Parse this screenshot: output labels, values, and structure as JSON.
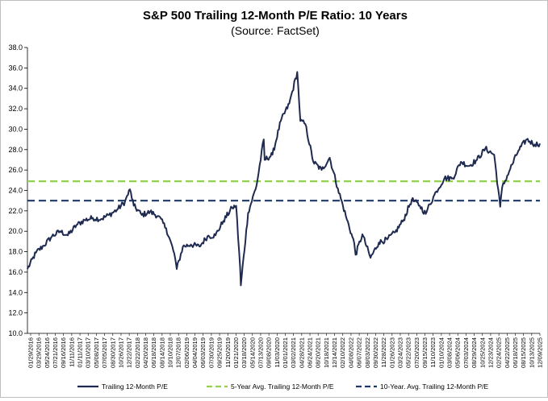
{
  "chart_data": {
    "type": "line",
    "title": "S&P 500 Trailing 12-Month P/E Ratio: 10 Years",
    "subtitle": "(Source: FactSet)",
    "xlabel": "",
    "ylabel": "",
    "ylim": [
      10,
      38
    ],
    "yticks": [
      "10.0",
      "12.0",
      "14.0",
      "16.0",
      "18.0",
      "20.0",
      "22.0",
      "24.0",
      "26.0",
      "28.0",
      "30.0",
      "32.0",
      "34.0",
      "36.0",
      "38.0"
    ],
    "x_tick_labels": [
      "01/29/2016",
      "03/29/2016",
      "05/24/2016",
      "07/21/2016",
      "09/16/2016",
      "11/11/2016",
      "01/11/2017",
      "03/10/2017",
      "05/08/2017",
      "07/05/2017",
      "08/30/2017",
      "10/26/2017",
      "12/22/2017",
      "02/22/2018",
      "04/20/2018",
      "06/18/2018",
      "08/14/2018",
      "10/10/2018",
      "12/07/2018",
      "02/06/2019",
      "04/04/2019",
      "06/03/2019",
      "07/30/2019",
      "09/25/2019",
      "11/20/2019",
      "01/21/2020",
      "03/18/2020",
      "05/14/2020",
      "07/13/2020",
      "09/08/2020",
      "11/03/2020",
      "01/01/2021",
      "03/02/2021",
      "04/28/2021",
      "06/24/2021",
      "08/20/2021",
      "10/18/2021",
      "12/14/2021",
      "02/10/2022",
      "04/08/2022",
      "06/07/2022",
      "08/03/2022",
      "09/30/2022",
      "11/28/2022",
      "01/26/2023",
      "03/24/2023",
      "05/22/2023",
      "07/20/2023",
      "09/15/2023",
      "11/10/2023",
      "01/10/2024",
      "03/08/2024",
      "05/06/2024",
      "07/03/2024",
      "08/29/2024",
      "10/25/2024",
      "12/23/2024",
      "02/24/2025",
      "04/22/2025",
      "06/18/2025",
      "08/15/2025",
      "10/13/2025",
      "12/09/2025"
    ],
    "grid": false,
    "legend_position": "bottom",
    "series": [
      {
        "name": "Trailing 12-Month P/E",
        "style": "solid",
        "color": "#1f2a50",
        "points": [
          [
            "01/29/2016",
            16.3
          ],
          [
            "03/29/2016",
            17.9
          ],
          [
            "05/24/2016",
            18.6
          ],
          [
            "07/21/2016",
            19.5
          ],
          [
            "09/16/2016",
            20.0
          ],
          [
            "11/11/2016",
            19.6
          ],
          [
            "01/11/2017",
            20.6
          ],
          [
            "03/10/2017",
            21.1
          ],
          [
            "05/08/2017",
            21.3
          ],
          [
            "07/05/2017",
            21.2
          ],
          [
            "08/30/2017",
            21.6
          ],
          [
            "10/26/2017",
            22.1
          ],
          [
            "12/22/2017",
            22.9
          ],
          [
            "01/26/2018",
            24.1
          ],
          [
            "02/22/2018",
            22.5
          ],
          [
            "04/20/2018",
            21.6
          ],
          [
            "06/18/2018",
            21.9
          ],
          [
            "08/14/2018",
            21.5
          ],
          [
            "10/10/2018",
            20.3
          ],
          [
            "12/07/2018",
            17.8
          ],
          [
            "12/24/2018",
            16.3
          ],
          [
            "02/06/2019",
            18.5
          ],
          [
            "04/04/2019",
            18.7
          ],
          [
            "06/03/2019",
            18.5
          ],
          [
            "07/30/2019",
            19.5
          ],
          [
            "09/25/2019",
            19.6
          ],
          [
            "11/20/2019",
            21.0
          ],
          [
            "01/21/2020",
            22.3
          ],
          [
            "02/19/2020",
            22.5
          ],
          [
            "03/18/2020",
            16.5
          ],
          [
            "03/23/2020",
            14.7
          ],
          [
            "05/14/2020",
            21.8
          ],
          [
            "07/13/2020",
            24.5
          ],
          [
            "09/02/2020",
            29.0
          ],
          [
            "09/08/2020",
            27.0
          ],
          [
            "11/03/2020",
            27.5
          ],
          [
            "01/01/2021",
            30.8
          ],
          [
            "03/02/2021",
            32.5
          ],
          [
            "04/28/2021",
            35.6
          ],
          [
            "05/20/2021",
            30.8
          ],
          [
            "06/24/2021",
            30.5
          ],
          [
            "08/20/2021",
            26.8
          ],
          [
            "10/18/2021",
            26.0
          ],
          [
            "12/14/2021",
            27.2
          ],
          [
            "02/10/2022",
            24.2
          ],
          [
            "04/08/2022",
            21.5
          ],
          [
            "06/07/2022",
            18.8
          ],
          [
            "06/16/2022",
            17.7
          ],
          [
            "08/03/2022",
            19.7
          ],
          [
            "09/30/2022",
            17.4
          ],
          [
            "11/28/2022",
            18.9
          ],
          [
            "01/26/2023",
            19.2
          ],
          [
            "03/24/2023",
            19.9
          ],
          [
            "05/22/2023",
            21.1
          ],
          [
            "07/20/2023",
            23.1
          ],
          [
            "09/15/2023",
            22.5
          ],
          [
            "10/27/2023",
            21.7
          ],
          [
            "11/10/2023",
            22.2
          ],
          [
            "01/10/2024",
            23.9
          ],
          [
            "03/08/2024",
            25.2
          ],
          [
            "05/06/2024",
            25.2
          ],
          [
            "07/03/2024",
            26.8
          ],
          [
            "08/29/2024",
            26.4
          ],
          [
            "10/25/2024",
            27.0
          ],
          [
            "12/23/2024",
            28.1
          ],
          [
            "02/24/2025",
            27.5
          ],
          [
            "04/08/2025",
            22.4
          ],
          [
            "04/22/2025",
            24.3
          ],
          [
            "06/18/2025",
            26.1
          ],
          [
            "08/15/2025",
            27.9
          ],
          [
            "10/13/2025",
            29.0
          ],
          [
            "12/09/2025",
            28.5
          ],
          [
            "01/15/2026",
            28.6
          ]
        ]
      },
      {
        "name": "5-Year Avg. Trailing 12-Month P/E",
        "style": "dashed",
        "color": "#92d050",
        "value": 24.9
      },
      {
        "name": "10-Year. Avg. Trailing 12-Month P/E",
        "style": "dashed",
        "color": "#1f3864",
        "value": 23.0
      }
    ]
  }
}
